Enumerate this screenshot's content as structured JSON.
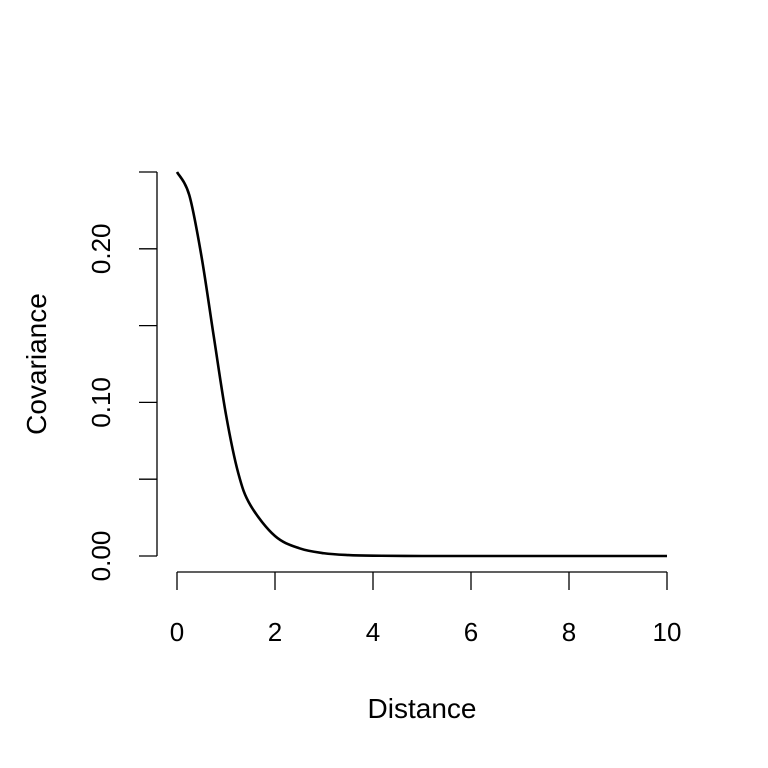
{
  "chart_data": {
    "type": "line",
    "xlabel": "Distance",
    "ylabel": "Covariance",
    "xlim": [
      0,
      10
    ],
    "ylim": [
      0,
      0.25
    ],
    "x_ticks": [
      "0",
      "2",
      "4",
      "6",
      "8",
      "10"
    ],
    "y_ticks": [
      "0.00",
      "0.10",
      "0.20"
    ],
    "grid": false,
    "legend": "none",
    "series": [
      {
        "color": "#000000",
        "x": [
          0,
          0.25,
          0.5,
          0.75,
          1.0,
          1.25,
          1.5,
          2.0,
          2.5,
          3.0,
          3.5,
          4.0,
          5.0,
          6.0,
          7.0,
          8.0,
          9.0,
          10.0
        ],
        "y": [
          0.25,
          0.235,
          0.195,
          0.143,
          0.092,
          0.054,
          0.033,
          0.013,
          0.005,
          0.0018,
          0.0006,
          0.0002,
          0.0,
          0.0,
          0.0,
          0.0,
          0.0,
          0.0
        ]
      }
    ]
  }
}
